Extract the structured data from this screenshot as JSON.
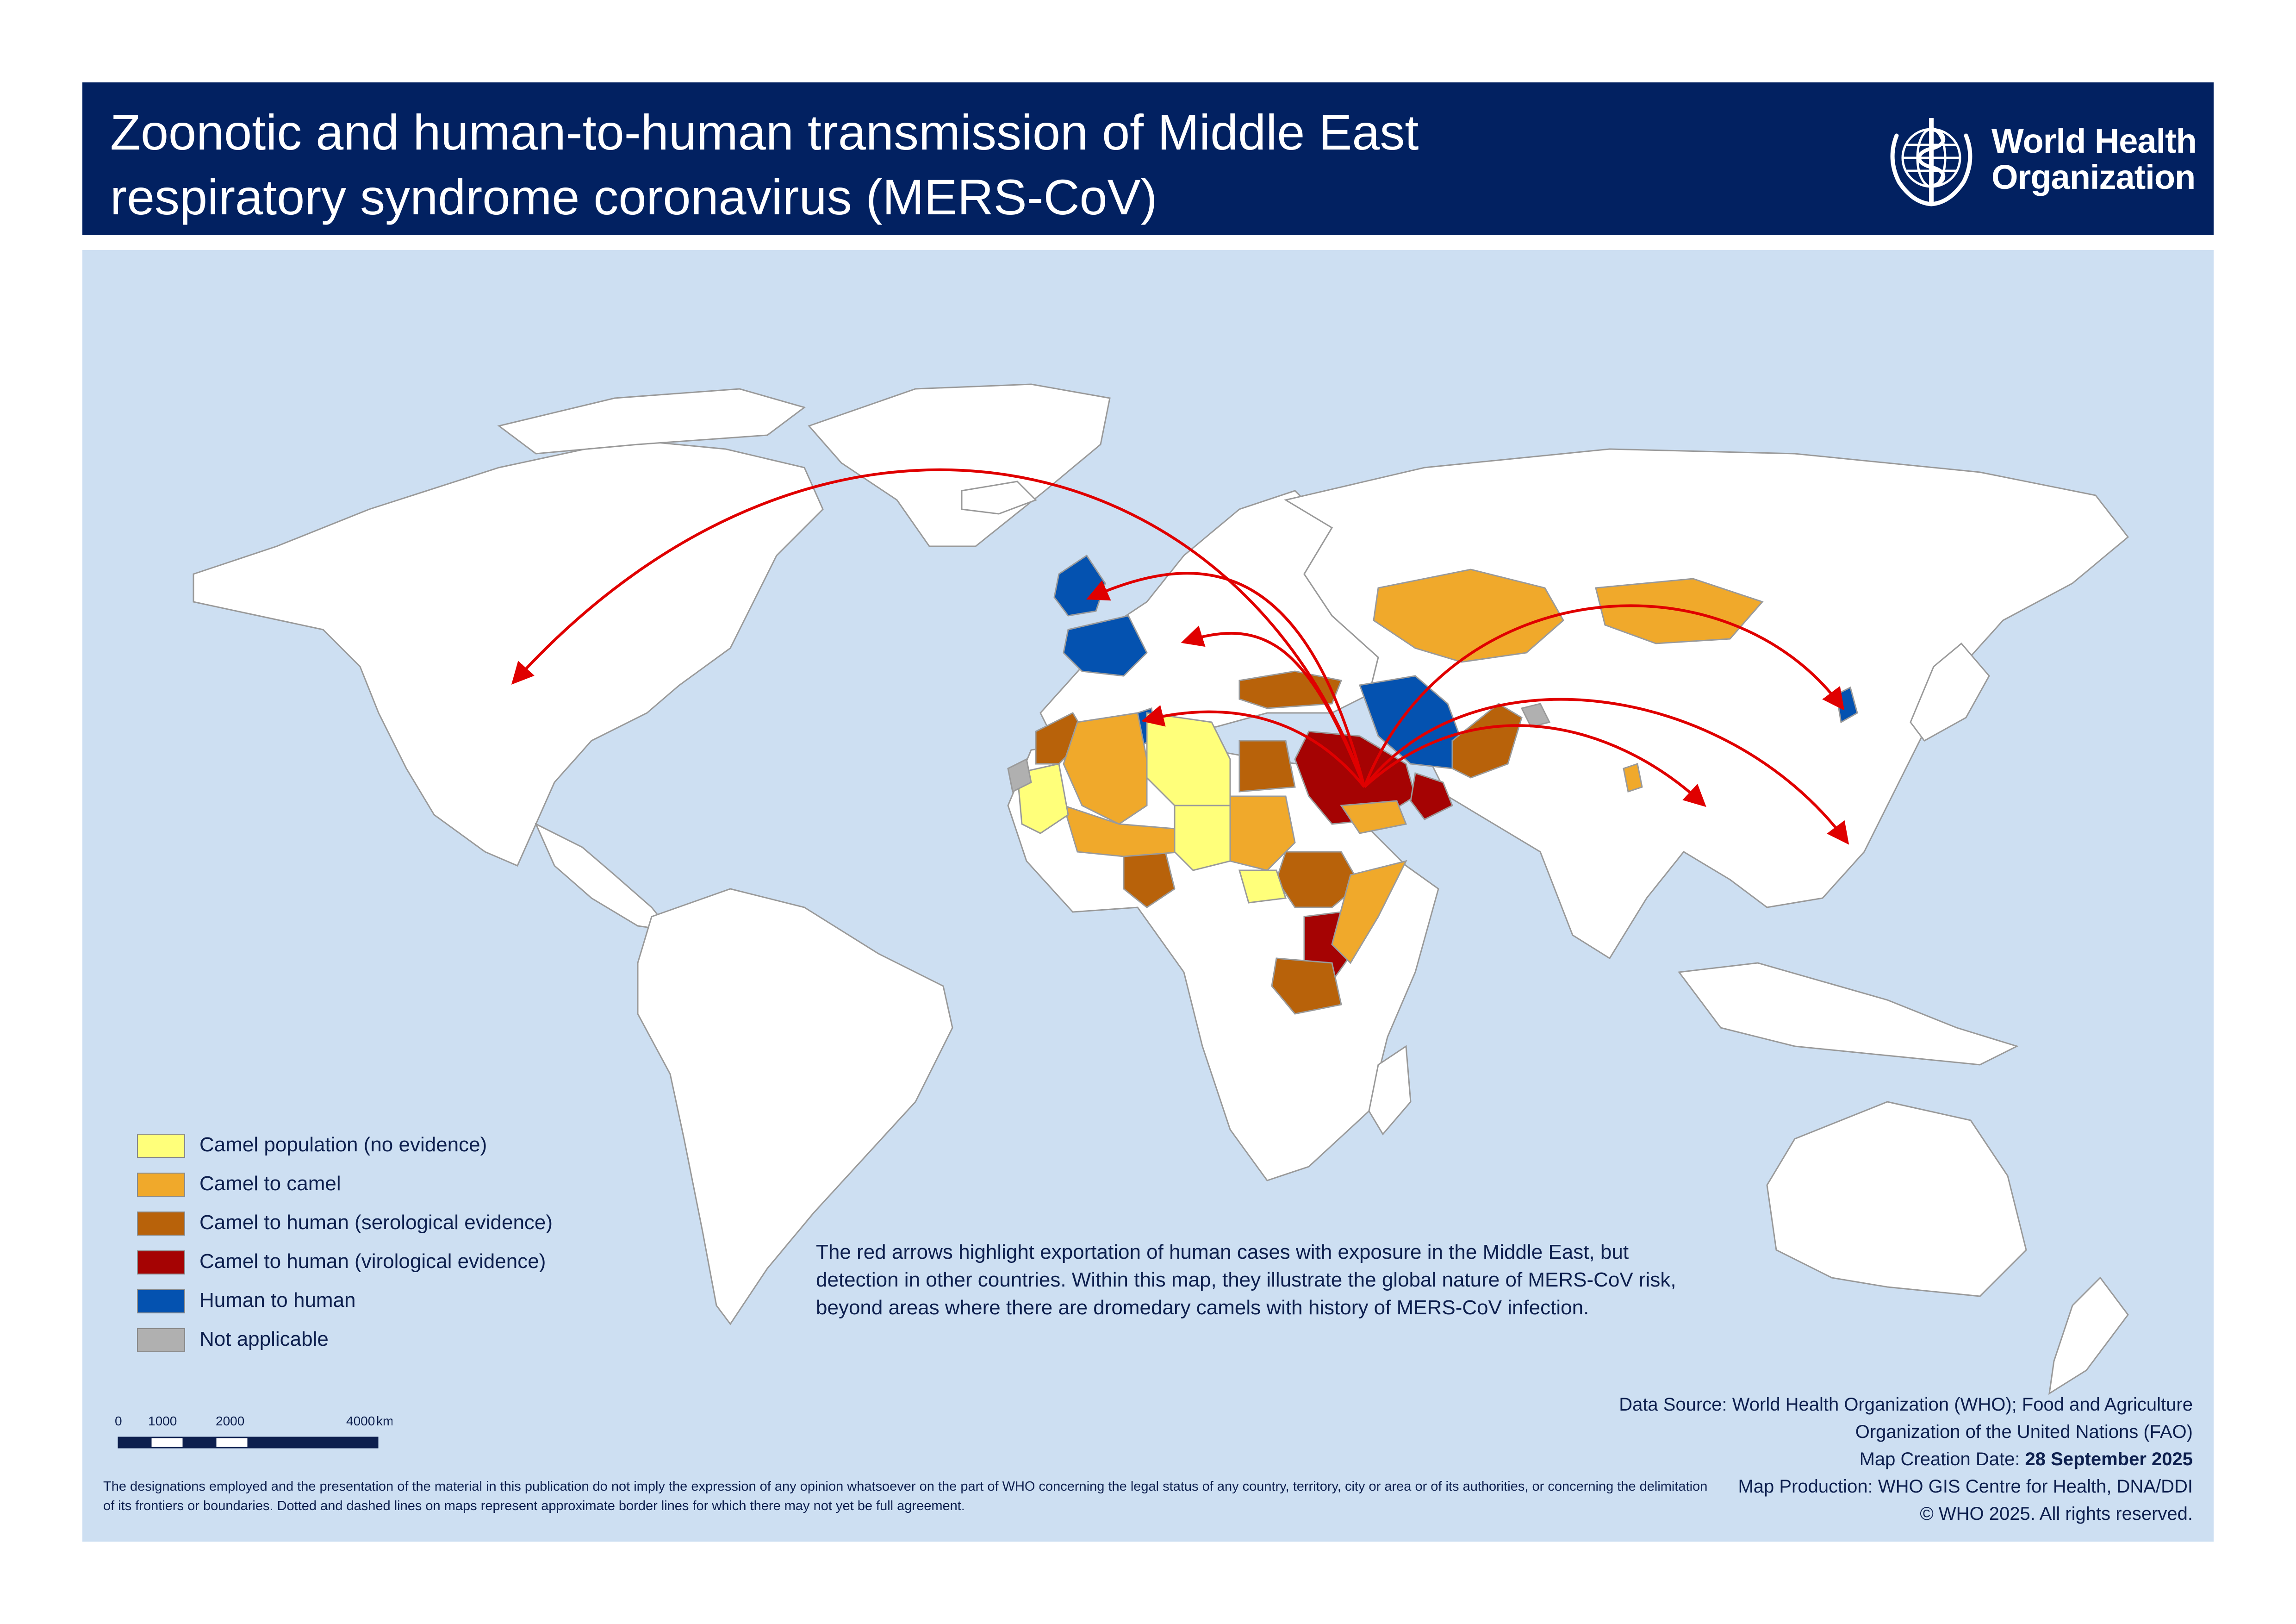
{
  "header": {
    "title_line1": "Zoonotic and human-to-human transmission of Middle East",
    "title_line2": "respiratory syndrome coronavirus (MERS-CoV)",
    "org_line1": "World Health",
    "org_line2": "Organization",
    "background_color": "#022161"
  },
  "legend": {
    "items": [
      {
        "label": "Camel population (no evidence)",
        "color": "#ffff7a"
      },
      {
        "label": "Camel to camel",
        "color": "#f0a92b"
      },
      {
        "label": "Camel to human (serological evidence)",
        "color": "#b8620a"
      },
      {
        "label": "Camel to human (virological evidence)",
        "color": "#a50303"
      },
      {
        "label": "Human to human",
        "color": "#0452b0"
      },
      {
        "label": "Not applicable",
        "color": "#b0b0b0"
      }
    ]
  },
  "explanation": "The red arrows highlight exportation of human cases with exposure in the Middle East, but detection in other countries. Within this map, they illustrate the global nature of MERS-CoV risk, beyond areas where there are dromedary camels with history of MERS-CoV infection.",
  "scale_bar": {
    "labels": [
      "0",
      "1000",
      "2000",
      "4000"
    ],
    "unit": "km"
  },
  "disclaimer": "The designations employed and the presentation of the material in this publication do not imply the expression of any opinion whatsoever on the part of WHO concerning the legal status of any country, territory, city or area or of its authorities, or concerning the delimitation of its frontiers or boundaries. Dotted and dashed lines on maps represent approximate border lines for which there may not yet be full agreement.",
  "source": {
    "data_source": "Data Source: World Health Organization (WHO); Food and Agriculture Organization of the United Nations (FAO)",
    "creation_label": "Map Creation Date: ",
    "creation_date": "28 September 2025",
    "production": "Map Production: WHO GIS Centre for Health, DNA/DDI",
    "copyright": "© WHO 2025. All rights reserved."
  },
  "map": {
    "ocean_color": "#cddff2",
    "land_color": "#ffffff",
    "arrow_color": "#e00000",
    "arrow_destinations": [
      "United States of America",
      "United Kingdom",
      "Austria",
      "Tunisia",
      "Republic of Korea",
      "Thailand",
      "Philippines"
    ]
  }
}
